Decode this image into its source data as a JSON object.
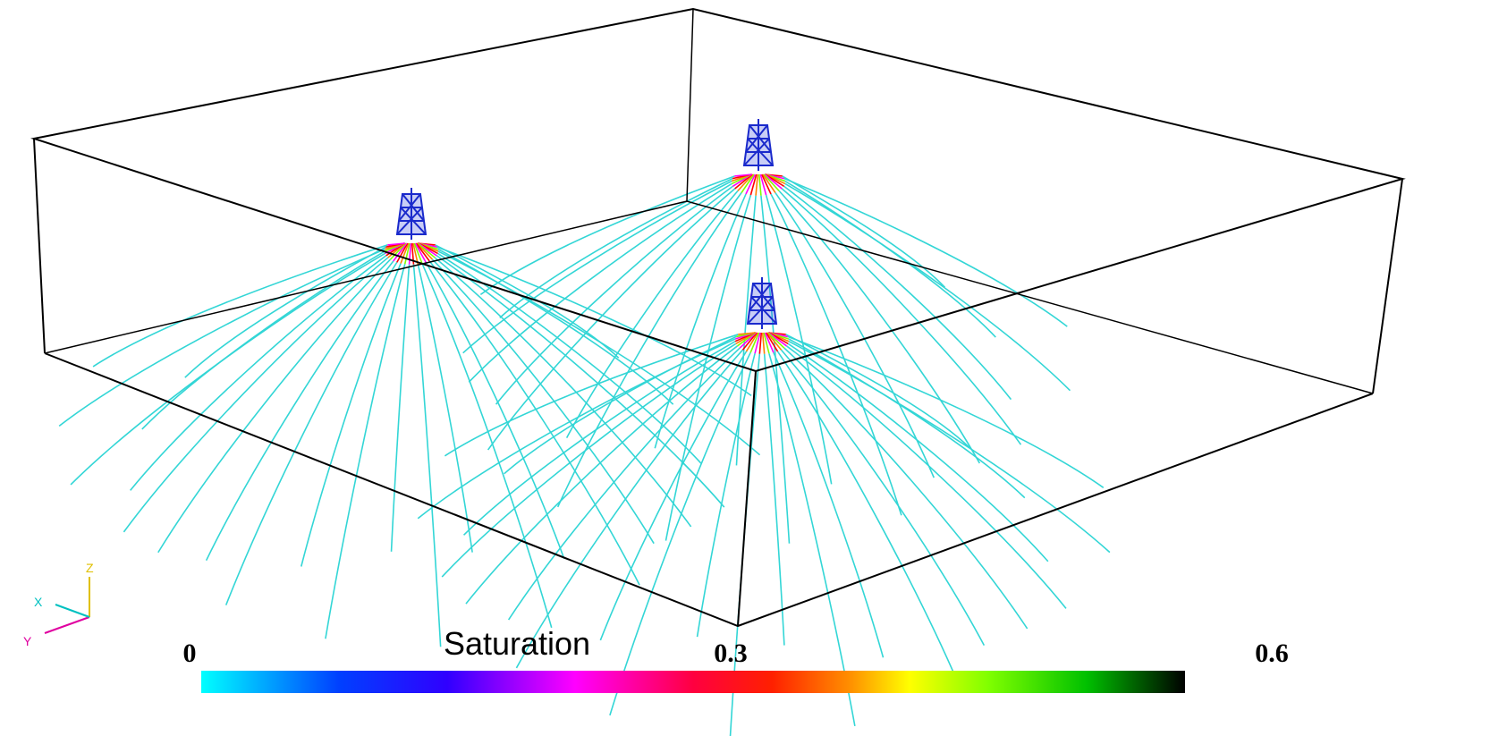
{
  "colorbar": {
    "title": "Saturation",
    "ticks": [
      0,
      0.3,
      0.6
    ],
    "range": [
      0,
      0.6
    ]
  },
  "triad": {
    "x": "X",
    "y": "Y",
    "z": "Z"
  }
}
